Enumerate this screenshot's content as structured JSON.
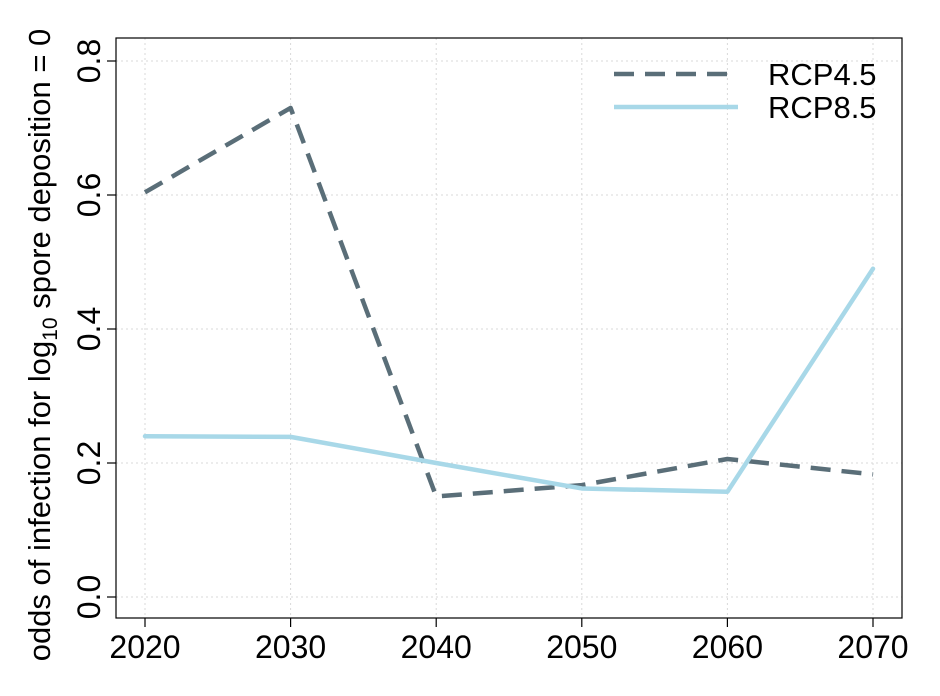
{
  "chart_data": {
    "type": "line",
    "x": [
      2020,
      2030,
      2040,
      2050,
      2060,
      2070
    ],
    "xticks": [
      "2020",
      "2030",
      "2040",
      "2050",
      "2060",
      "2070"
    ],
    "yticks": [
      "0.0",
      "0.2",
      "0.4",
      "0.6",
      "0.8"
    ],
    "ylim": [
      0.0,
      0.8
    ],
    "xlim": [
      2020,
      2070
    ],
    "ylabel": {
      "prefix": "odds of infection for log",
      "subscript": "10",
      "suffix": " spore deposition = 0"
    },
    "grid": true,
    "legend_position": "top-right",
    "series": [
      {
        "name": "RCP4.5",
        "color": "#5a6e78",
        "dash": "dashed",
        "values": [
          0.604,
          0.73,
          0.15,
          0.167,
          0.206,
          0.183
        ]
      },
      {
        "name": "RCP8.5",
        "color": "#a8d8e8",
        "dash": "solid",
        "values": [
          0.24,
          0.239,
          0.2,
          0.162,
          0.157,
          0.49
        ]
      }
    ]
  }
}
